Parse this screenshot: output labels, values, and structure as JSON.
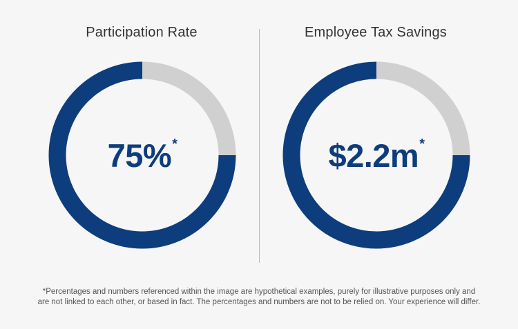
{
  "colors": {
    "primary": "#0d3d7d",
    "remainder": "#d0d0d0",
    "background": "#f6f6f6"
  },
  "chart_data": [
    {
      "type": "pie",
      "title": "Participation Rate",
      "center_label": "75%",
      "center_marker": "*",
      "slices": [
        {
          "name": "filled",
          "value": 75
        },
        {
          "name": "remainder",
          "value": 25
        }
      ],
      "start": "top",
      "direction": "counter-clockwise"
    },
    {
      "type": "pie",
      "title": "Employee Tax Savings",
      "center_label": "$2.2m",
      "center_marker": "*",
      "slices": [
        {
          "name": "filled",
          "value": 75
        },
        {
          "name": "remainder",
          "value": 25
        }
      ],
      "start": "top",
      "direction": "counter-clockwise"
    }
  ],
  "footnote": {
    "line1": "*Percentages and numbers referenced within the image are hypothetical examples, purely for illustrative purposes only and",
    "line2": "are not linked to each other, or based in fact. The percentages and numbers are not to be relied on. Your experience will differ."
  }
}
